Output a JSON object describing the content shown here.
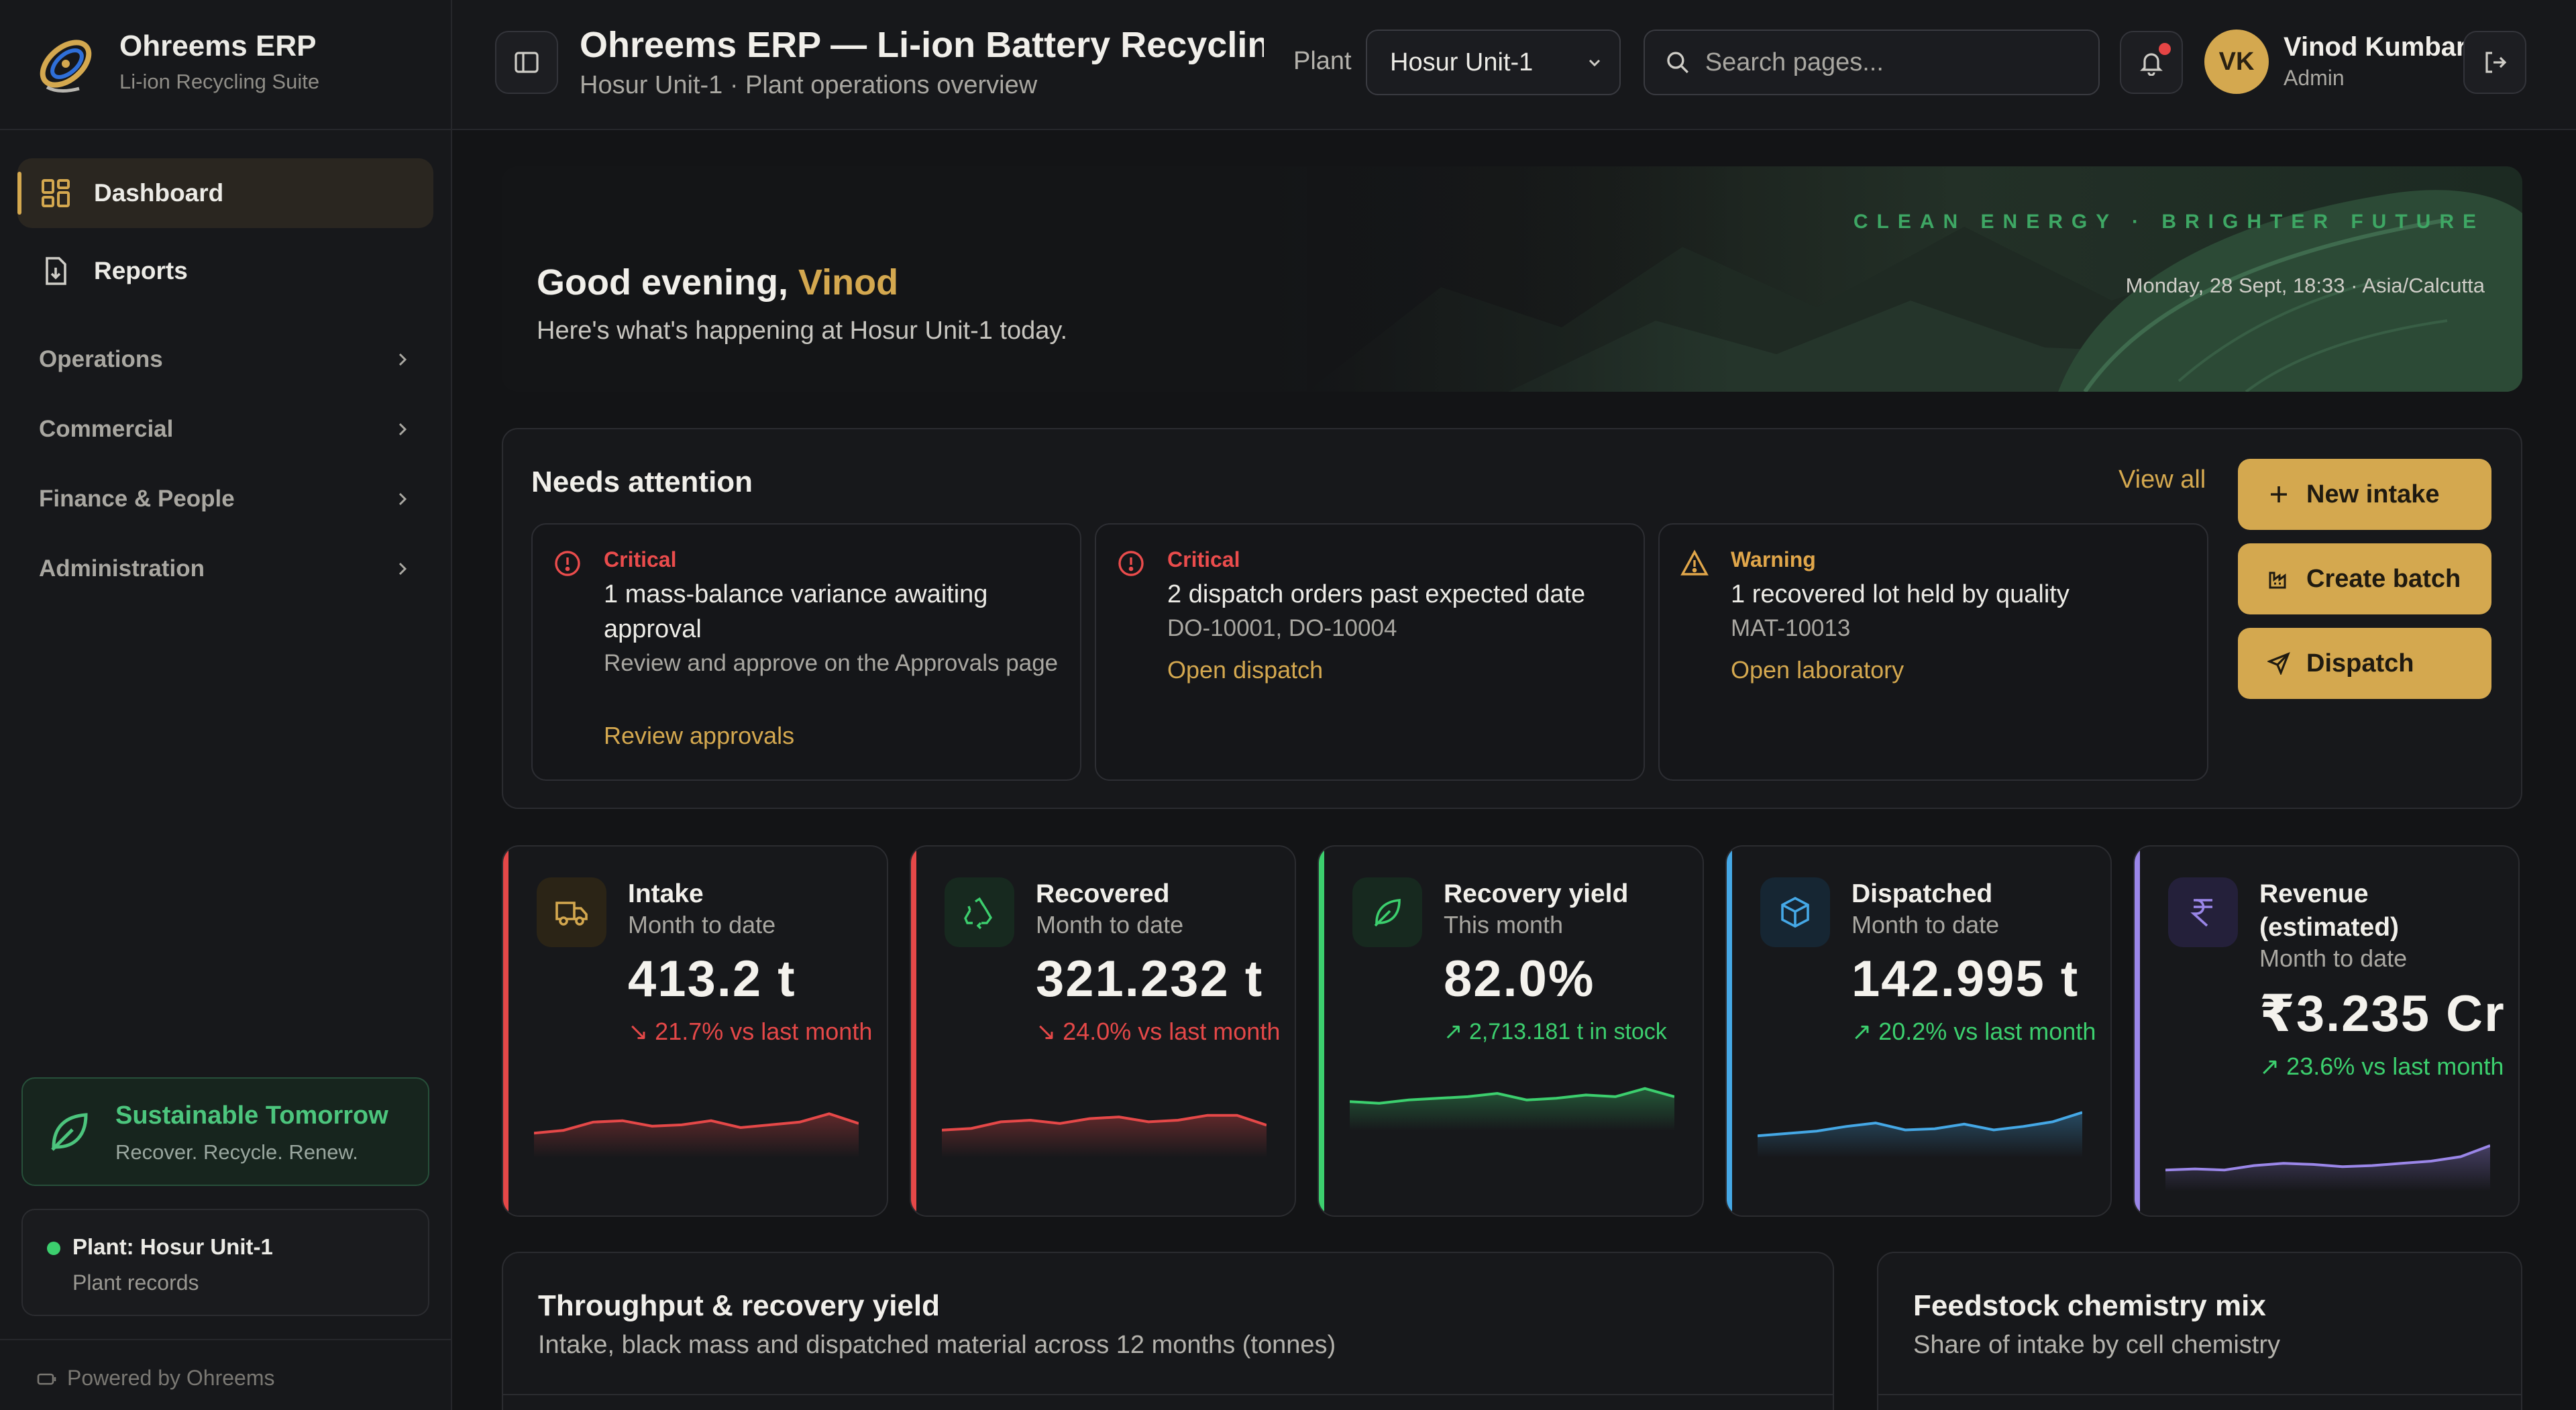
{
  "brand": {
    "name": "Ohreems ERP",
    "tagline": "Li-ion Recycling Suite"
  },
  "sidebar": {
    "items": [
      {
        "label": "Dashboard",
        "icon": "dashboard-grid-icon",
        "active": true
      },
      {
        "label": "Reports",
        "icon": "report-download-icon"
      }
    ],
    "groups": [
      {
        "label": "Operations"
      },
      {
        "label": "Commercial"
      },
      {
        "label": "Finance & People"
      },
      {
        "label": "Administration"
      }
    ],
    "promo": {
      "title": "Sustainable Tomorrow",
      "subtitle": "Recover. Recycle. Renew."
    },
    "plant": {
      "title": "Plant: Hosur Unit-1",
      "subtitle": "Plant records"
    },
    "footer": "Powered by Ohreems"
  },
  "header": {
    "title": "Ohreems ERP — Li-ion Battery Recycling ...",
    "subtitle": "Hosur Unit-1 · Plant operations overview",
    "plant_label": "Plant",
    "plant_value": "Hosur Unit-1",
    "search_placeholder": "Search pages...",
    "user_initials": "VK",
    "user_name": "Vinod Kumbar",
    "user_role": "Admin"
  },
  "hero": {
    "greeting": "Good evening,",
    "name": "Vinod",
    "subtitle": "Here's what's happening at Hosur Unit-1 today.",
    "tagline": "CLEAN ENERGY · BRIGHTER FUTURE",
    "datetime": "Monday, 28 Sept, 18:33 · Asia/Calcutta"
  },
  "attention": {
    "title": "Needs attention",
    "view_all": "View all",
    "alerts": [
      {
        "severity": "Critical",
        "headline": "1 mass-balance variance awaiting approval",
        "detail": "Review and approve on the Approvals page",
        "link": "Review approvals"
      },
      {
        "severity": "Critical",
        "headline": "2 dispatch orders past expected date",
        "detail": "DO-10001, DO-10004",
        "link": "Open dispatch"
      },
      {
        "severity": "Warning",
        "headline": "1 recovered lot held by quality",
        "detail": "MAT-10013",
        "link": "Open laboratory"
      }
    ],
    "actions": [
      {
        "label": "New intake",
        "icon": "plus-icon"
      },
      {
        "label": "Create batch",
        "icon": "factory-icon"
      },
      {
        "label": "Dispatch",
        "icon": "send-icon"
      }
    ]
  },
  "kpis": [
    {
      "title": "Intake",
      "subtitle": "Month to date",
      "value": "413.2 t",
      "delta": "21.7%",
      "delta_suffix": "vs last month",
      "direction": "down",
      "accent": "#e54848",
      "icon": "truck-icon",
      "trend": [
        3,
        3.2,
        3.8,
        3.9,
        3.5,
        3.6,
        3.9,
        3.4,
        3.6,
        3.8,
        4.4,
        3.7
      ]
    },
    {
      "title": "Recovered",
      "subtitle": "Month to date",
      "value": "321.232 t",
      "delta": "24.0%",
      "delta_suffix": "vs last month",
      "direction": "down",
      "accent": "#e54848",
      "icon": "recycle-icon",
      "trend": [
        3,
        3.1,
        3.5,
        3.6,
        3.4,
        3.7,
        3.8,
        3.5,
        3.6,
        3.9,
        3.9,
        3.3
      ]
    },
    {
      "title": "Recovery yield",
      "subtitle": "This month",
      "value": "82.0%",
      "delta": "2,713.181 t in stock",
      "delta_suffix": "",
      "direction": "up",
      "accent": "#3ccf6e",
      "icon": "leaf-icon",
      "trend": [
        3.5,
        3.4,
        3.6,
        3.7,
        3.8,
        4.0,
        3.6,
        3.7,
        3.9,
        3.8,
        4.3,
        3.8
      ]
    },
    {
      "title": "Dispatched",
      "subtitle": "Month to date",
      "value": "142.995 t",
      "delta": "20.2%",
      "delta_suffix": "vs last month",
      "direction": "up",
      "accent": "#45a8e6",
      "icon": "box-icon",
      "trend": [
        3,
        3.2,
        3.4,
        3.8,
        4.1,
        3.5,
        3.6,
        4.0,
        3.5,
        3.8,
        4.2,
        5.0
      ]
    },
    {
      "title": "Revenue (estimated)",
      "subtitle": "Month to date",
      "value": "₹3.235 Cr",
      "delta": "23.6%",
      "delta_suffix": "vs last month",
      "direction": "up",
      "accent": "#9a86e8",
      "icon": "rupee-icon",
      "trend": [
        3,
        3.1,
        3.0,
        3.4,
        3.6,
        3.5,
        3.3,
        3.4,
        3.6,
        3.8,
        4.2,
        5.2
      ]
    }
  ],
  "panels": [
    {
      "title": "Throughput & recovery yield",
      "subtitle": "Intake, black mass and dispatched material across 12 months (tonnes)"
    },
    {
      "title": "Feedstock chemistry mix",
      "subtitle": "Share of intake by cell chemistry"
    }
  ]
}
